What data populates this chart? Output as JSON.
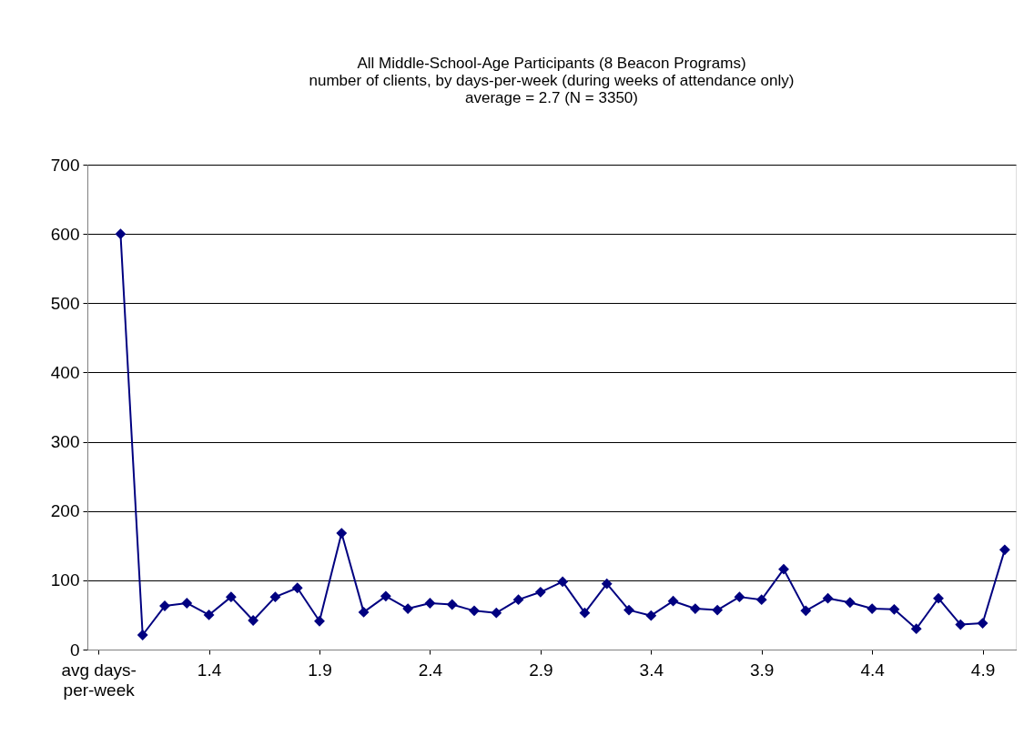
{
  "chart_data": {
    "type": "line",
    "title": [
      "All Middle-School-Age Participants   (8 Beacon Programs)",
      "number of clients, by days-per-week (during weeks of attendance only)",
      "average = 2.7    (N = 3350)"
    ],
    "categories": [
      "avg days-per-week",
      null,
      null,
      null,
      null,
      "1.4",
      null,
      null,
      null,
      null,
      "1.9",
      null,
      null,
      null,
      null,
      "2.4",
      null,
      null,
      null,
      null,
      "2.9",
      null,
      null,
      null,
      null,
      "3.4",
      null,
      null,
      null,
      null,
      "3.9",
      null,
      null,
      null,
      null,
      "4.4",
      null,
      null,
      null,
      null,
      "4.9",
      null
    ],
    "series": [
      {
        "color": "#000080",
        "values": [
          null,
          600,
          21,
          63,
          67,
          50,
          76,
          42,
          76,
          89,
          41,
          168,
          54,
          77,
          59,
          67,
          65,
          56,
          53,
          72,
          83,
          98,
          53,
          95,
          57,
          49,
          70,
          59,
          57,
          76,
          72,
          116,
          56,
          74,
          68,
          59,
          58,
          30,
          74,
          36,
          38,
          144
        ]
      }
    ],
    "ylim": [
      0,
      700
    ],
    "yticks": [
      0,
      100,
      200,
      300,
      400,
      500,
      600,
      700
    ],
    "grid": "y",
    "marker": "diamond",
    "line_style": "solid"
  }
}
